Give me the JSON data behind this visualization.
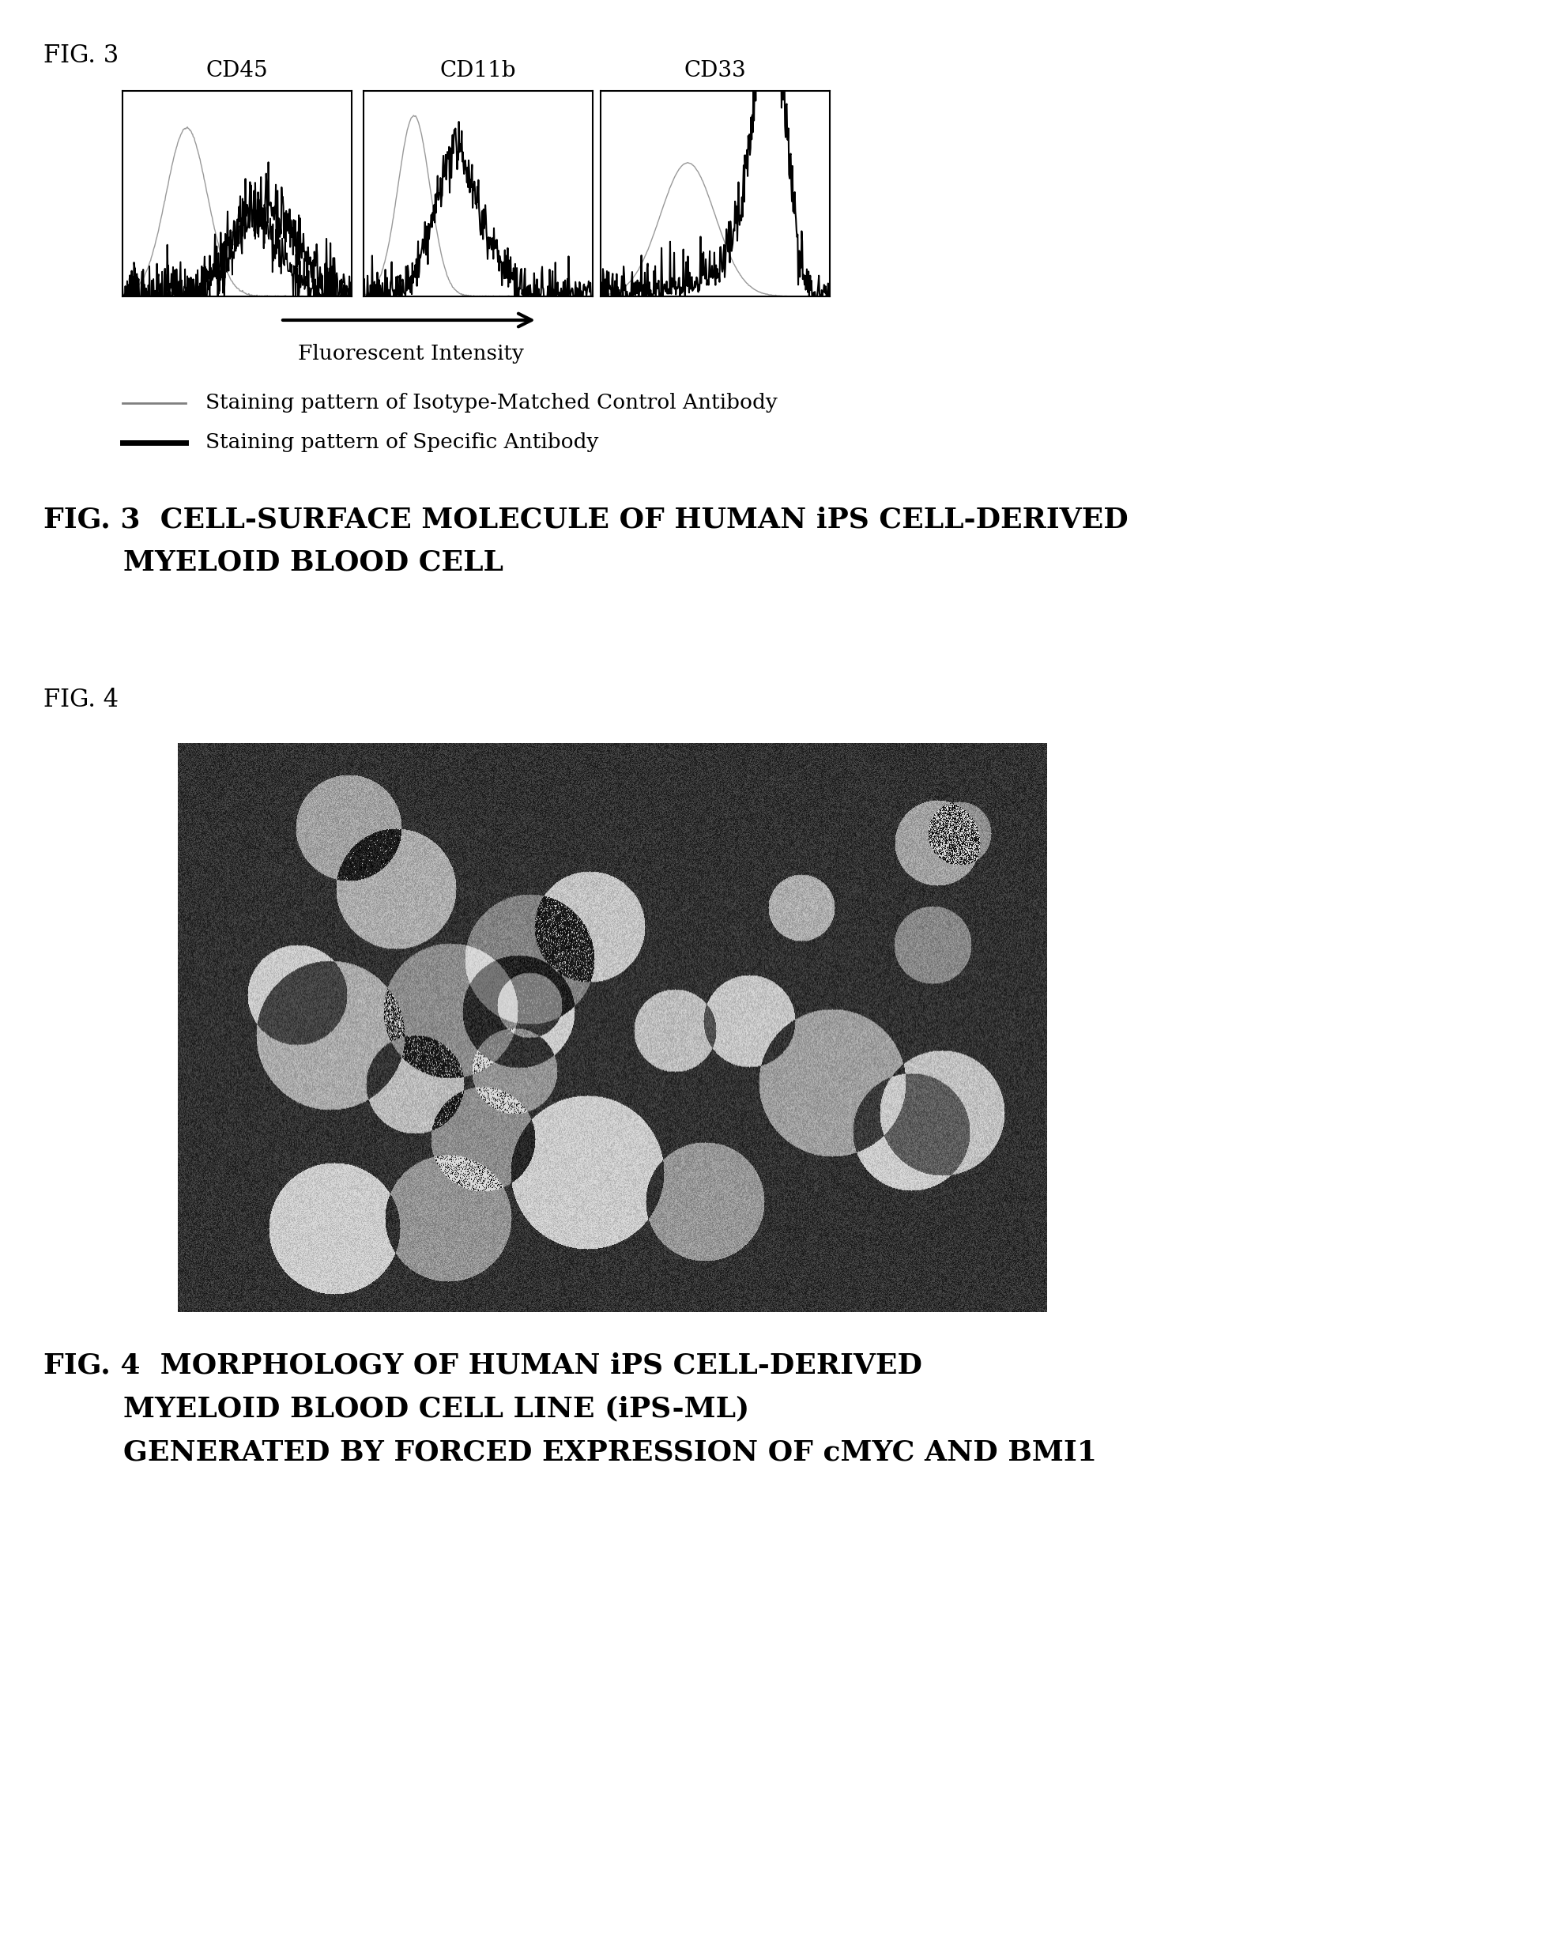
{
  "fig3_label": "FIG. 3",
  "fig4_label": "FIG. 4",
  "panel_labels": [
    "CD45",
    "CD11b",
    "CD33"
  ],
  "xlabel": "Fluorescent Intensity",
  "legend_thin": "Staining pattern of Isotype-Matched Control Antibody",
  "legend_thick": "Staining pattern of Specific Antibody",
  "fig3_caption_line1": "FIG. 3  CELL-SURFACE MOLECULE OF HUMAN iPS CELL-DERIVED",
  "fig3_caption_line2": "        MYELOID BLOOD CELL",
  "fig4_caption_line1": "FIG. 4  MORPHOLOGY OF HUMAN iPS CELL-DERIVED",
  "fig4_caption_line2": "        MYELOID BLOOD CELL LINE (iPS-ML)",
  "fig4_caption_line3": "        GENERATED BY FORCED EXPRESSION OF cMYC AND BMI1",
  "bg_color": "#ffffff",
  "text_color": "#000000"
}
